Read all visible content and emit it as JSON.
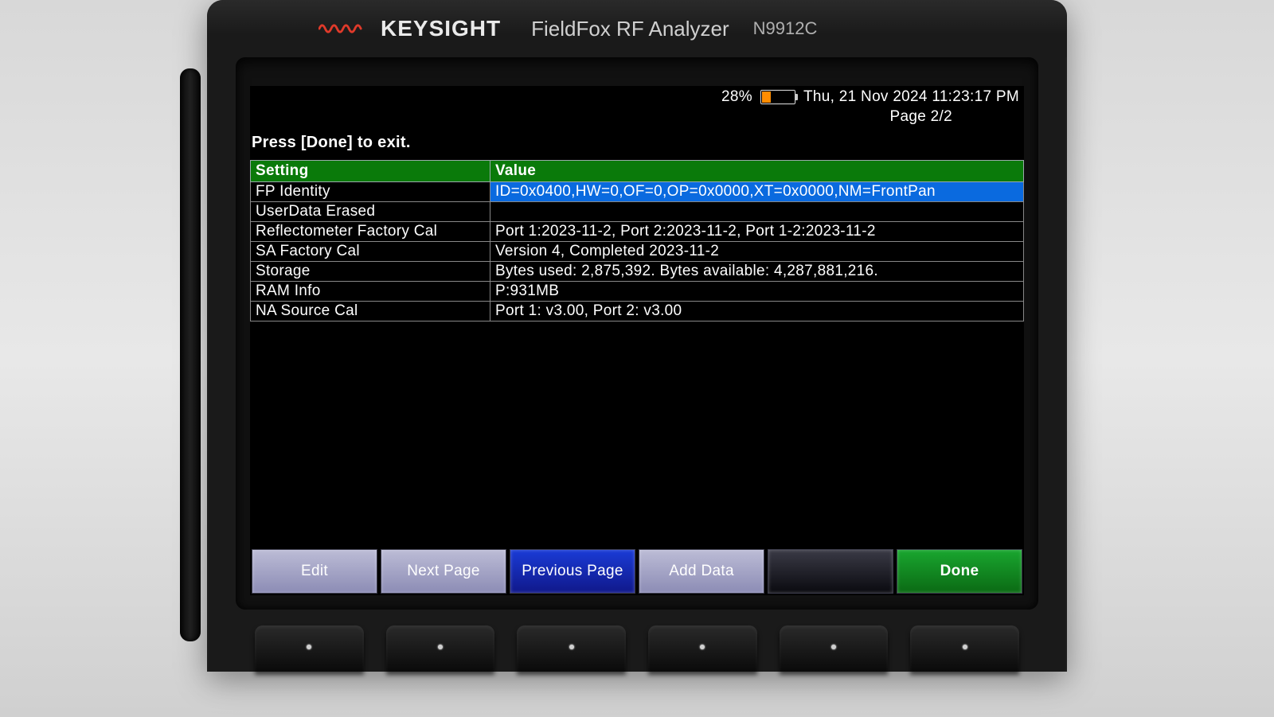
{
  "device": {
    "brand": "KEYSIGHT",
    "product": "FieldFox RF Analyzer",
    "model": "N9912C"
  },
  "status": {
    "battery_pct": "28%",
    "battery_level": 0.28,
    "battery_fill_color": "#ff8c00",
    "datetime": "Thu, 21 Nov 2024 11:23:17 PM"
  },
  "page_indicator": "Page 2/2",
  "instruction": "Press [Done] to exit.",
  "table": {
    "header_bg": "#0a7a0a",
    "selected_bg": "#0a6adf",
    "border_color": "#888888",
    "columns": {
      "setting": "Setting",
      "value": "Value"
    },
    "rows": [
      {
        "setting": "FP Identity",
        "value": "ID=0x0400,HW=0,OF=0,OP=0x0000,XT=0x0000,NM=FrontPan",
        "selected": true
      },
      {
        "setting": "UserData Erased",
        "value": "",
        "selected": false
      },
      {
        "setting": "Reflectometer Factory Cal",
        "value": "Port 1:2023-11-2, Port 2:2023-11-2, Port 1-2:2023-11-2",
        "selected": false
      },
      {
        "setting": "SA Factory Cal",
        "value": "Version 4, Completed 2023-11-2",
        "selected": false
      },
      {
        "setting": "Storage",
        "value": "Bytes used: 2,875,392.  Bytes available: 4,287,881,216.",
        "selected": false
      },
      {
        "setting": "RAM Info",
        "value": "P:931MB",
        "selected": false
      },
      {
        "setting": "NA Source Cal",
        "value": "Port 1: v3.00, Port 2: v3.00",
        "selected": false
      }
    ]
  },
  "softkeys": [
    {
      "label": "Edit",
      "style": "normal"
    },
    {
      "label": "Next Page",
      "style": "normal"
    },
    {
      "label": "Previous Page",
      "style": "active"
    },
    {
      "label": "Add Data",
      "style": "normal"
    },
    {
      "label": "",
      "style": "dark"
    },
    {
      "label": "Done",
      "style": "done"
    }
  ],
  "colors": {
    "screen_bg": "#000000",
    "text": "#ffffff",
    "softkey_normal_top": "#bcbcd6",
    "softkey_normal_bottom": "#8c8cb5",
    "softkey_active_top": "#1a3bd6",
    "softkey_active_bottom": "#10188a",
    "softkey_done_top": "#19a62f",
    "softkey_done_bottom": "#0b6a14",
    "brand_red": "#e03a2a"
  }
}
